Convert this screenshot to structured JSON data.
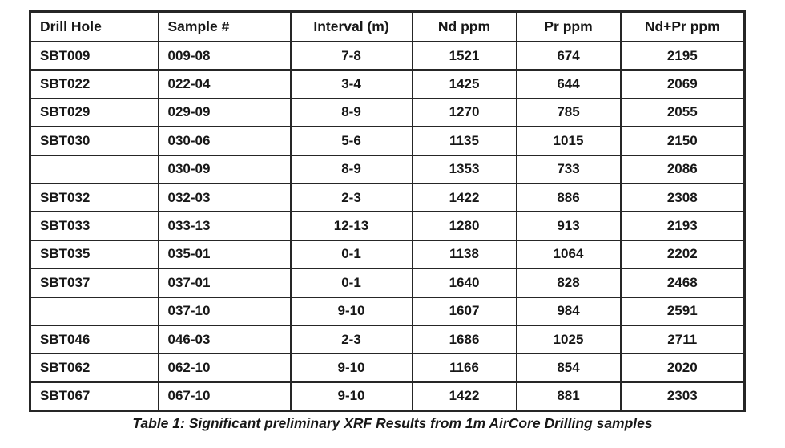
{
  "colors": {
    "border": "#262626",
    "text": "#171717",
    "background": "#ffffff"
  },
  "table": {
    "headers": [
      "Drill Hole",
      "Sample #",
      "Interval (m)",
      "Nd ppm",
      "Pr ppm",
      "Nd+Pr ppm"
    ],
    "rows": [
      [
        "SBT009",
        "009-08",
        "7-8",
        "1521",
        "674",
        "2195"
      ],
      [
        "SBT022",
        "022-04",
        "3-4",
        "1425",
        "644",
        "2069"
      ],
      [
        "SBT029",
        "029-09",
        "8-9",
        "1270",
        "785",
        "2055"
      ],
      [
        "SBT030",
        "030-06",
        "5-6",
        "1135",
        "1015",
        "2150"
      ],
      [
        "",
        "030-09",
        "8-9",
        "1353",
        "733",
        "2086"
      ],
      [
        "SBT032",
        "032-03",
        "2-3",
        "1422",
        "886",
        "2308"
      ],
      [
        "SBT033",
        "033-13",
        "12-13",
        "1280",
        "913",
        "2193"
      ],
      [
        "SBT035",
        "035-01",
        "0-1",
        "1138",
        "1064",
        "2202"
      ],
      [
        "SBT037",
        "037-01",
        "0-1",
        "1640",
        "828",
        "2468"
      ],
      [
        "",
        "037-10",
        "9-10",
        "1607",
        "984",
        "2591"
      ],
      [
        "SBT046",
        "046-03",
        "2-3",
        "1686",
        "1025",
        "2711"
      ],
      [
        "SBT062",
        "062-10",
        "9-10",
        "1166",
        "854",
        "2020"
      ],
      [
        "SBT067",
        "067-10",
        "9-10",
        "1422",
        "881",
        "2303"
      ]
    ]
  },
  "caption": "Table 1: Significant preliminary XRF Results from 1m AirCore Drilling samples"
}
